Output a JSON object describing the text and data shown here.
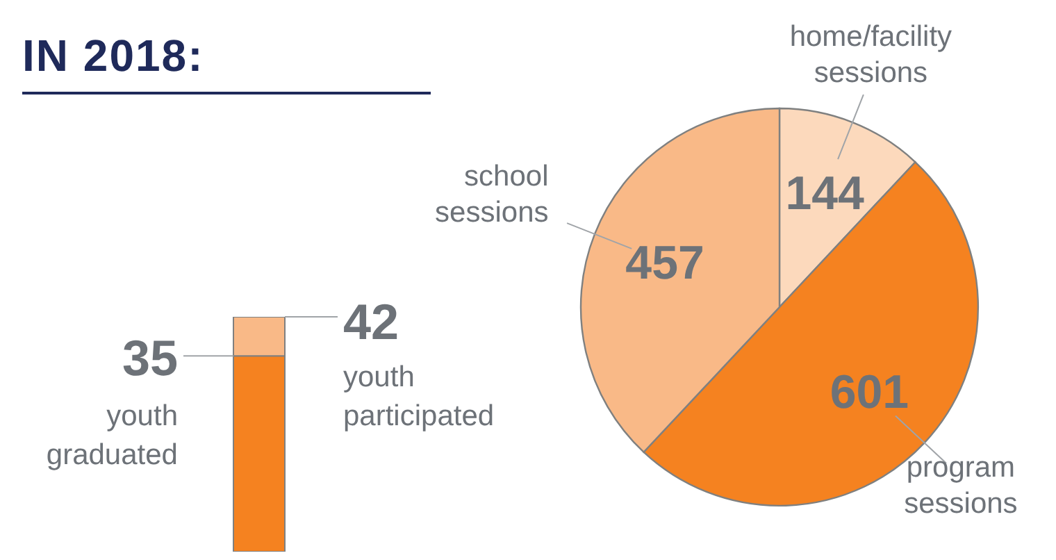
{
  "chart_data": [
    {
      "type": "bar",
      "title": "IN 2018:",
      "stacked": true,
      "categories": [
        null
      ],
      "ylim": [
        0,
        42
      ],
      "tick_labels": false,
      "totals": [
        "42"
      ],
      "series": [
        {
          "name": "youth graduated",
          "color": "#f58220",
          "values": [
            35
          ],
          "value_labels": [
            "35"
          ]
        },
        {
          "name": "youth participated",
          "color": "#f9b987",
          "values": [
            7
          ]
        }
      ]
    },
    {
      "type": "pie",
      "categories": [
        "home/facility sessions",
        "program sessions",
        "school sessions"
      ],
      "values": [
        144,
        601,
        457
      ],
      "colors": [
        "#fcd9bc",
        "#f58220",
        "#f9b987"
      ],
      "data_labels": true
    }
  ]
}
